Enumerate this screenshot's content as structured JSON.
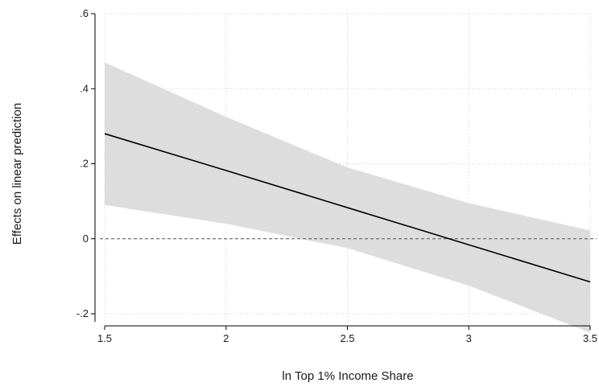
{
  "chart_data": {
    "type": "line",
    "xlabel": "ln Top 1% Income Share",
    "ylabel": "Effects on linear prediction",
    "xlim": [
      1.5,
      3.5
    ],
    "ylim": [
      -0.2,
      0.6
    ],
    "xticks": [
      1.5,
      2,
      2.5,
      3,
      3.5
    ],
    "xtick_labels": [
      "1.5",
      "2",
      "2.5",
      "3",
      "3.5"
    ],
    "yticks": [
      -0.2,
      0,
      0.2,
      0.4,
      0.6
    ],
    "ytick_labels": [
      "-.2",
      "0",
      ".2",
      ".4",
      ".6"
    ],
    "grid": true,
    "reference_line": {
      "y": 0,
      "style": "dashed"
    },
    "series": [
      {
        "x": [
          1.5,
          2.0,
          2.5,
          3.0,
          3.5
        ],
        "values": [
          0.28,
          0.182,
          0.083,
          -0.016,
          -0.115
        ],
        "ci_lower": [
          0.09,
          0.04,
          -0.025,
          -0.125,
          -0.25
        ],
        "ci_upper": [
          0.47,
          0.325,
          0.19,
          0.095,
          0.022
        ]
      }
    ],
    "colors": {
      "line": "#000000",
      "band": "#dddddd",
      "grid": "#d9d9d9",
      "reference": "#555555"
    }
  }
}
